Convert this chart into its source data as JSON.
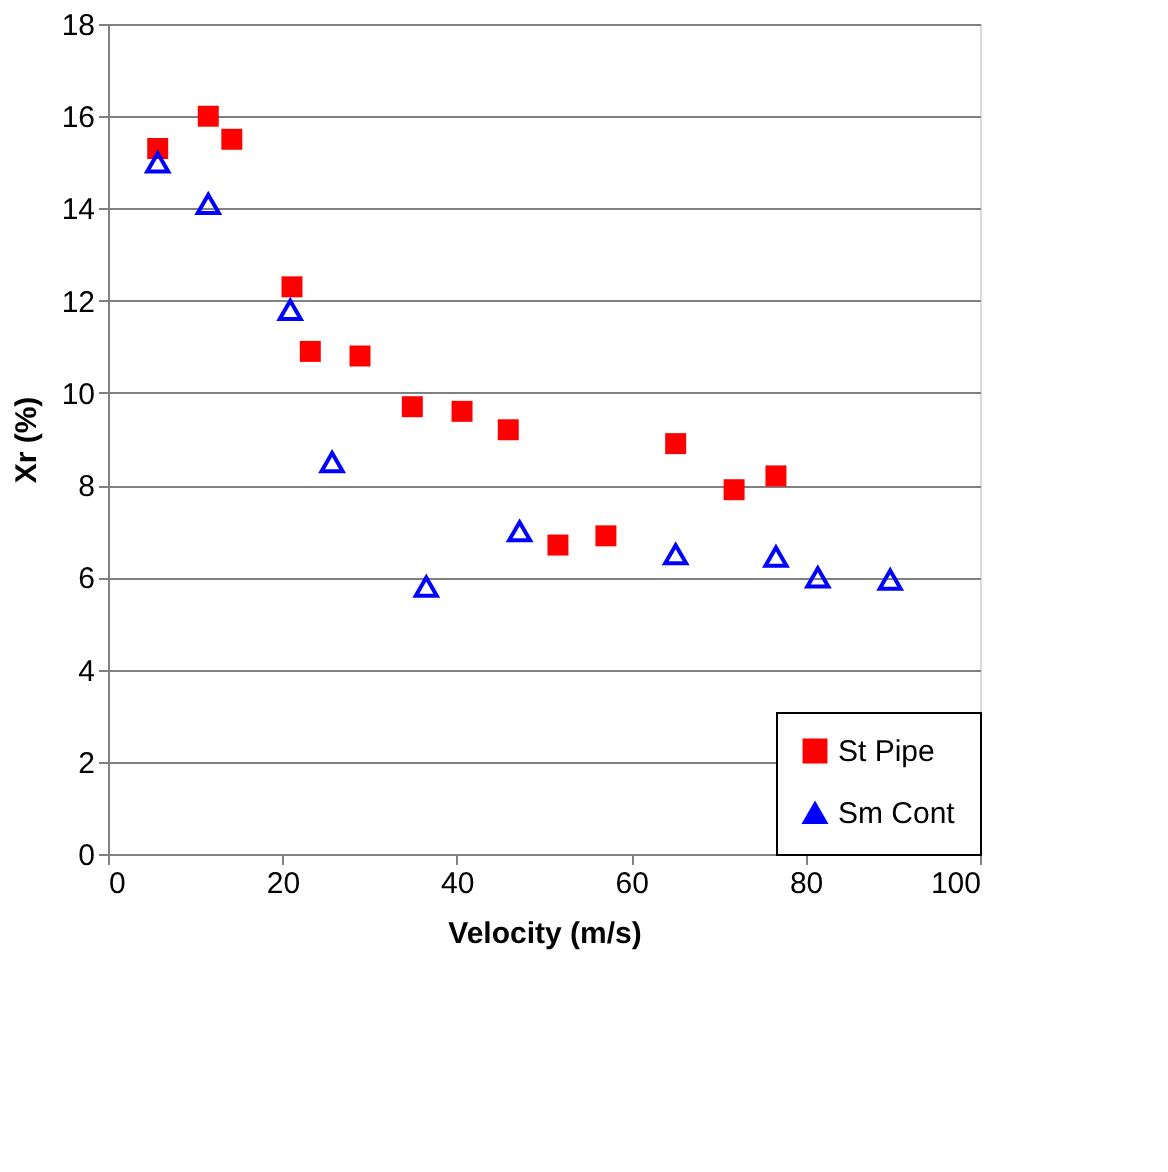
{
  "chart_data": {
    "type": "scatter",
    "xlabel": "Velocity (m/s)",
    "ylabel": "Xr (%)",
    "xlim": [
      0,
      100
    ],
    "xticks": [
      0,
      20,
      40,
      60,
      80,
      100
    ],
    "ylim": [
      0,
      18
    ],
    "yticks": [
      0,
      2,
      4,
      6,
      8,
      10,
      12,
      14,
      16,
      18
    ],
    "grid": "y",
    "legend": "bottom right",
    "series": [
      {
        "name": "St Pipe",
        "color": "#ff0000",
        "marker": "square",
        "x": [
          5.7,
          11.5,
          14.2,
          21.1,
          23.2,
          28.9,
          34.9,
          40.6,
          45.9,
          51.6,
          57.1,
          65.1,
          71.8,
          76.6
        ],
        "values": [
          15.3,
          16.0,
          15.5,
          12.3,
          10.9,
          10.8,
          9.7,
          9.6,
          9.2,
          6.7,
          6.9,
          8.9,
          7.9,
          8.2
        ]
      },
      {
        "name": "Sm Cont",
        "color": "#0000ff",
        "marker": "triangle",
        "x": [
          5.7,
          11.5,
          20.9,
          25.7,
          36.5,
          47.2,
          65.1,
          76.6,
          81.4,
          89.7
        ],
        "values": [
          15.0,
          14.1,
          11.8,
          8.5,
          5.8,
          7.0,
          6.5,
          6.45,
          6.0,
          5.95
        ]
      }
    ]
  }
}
